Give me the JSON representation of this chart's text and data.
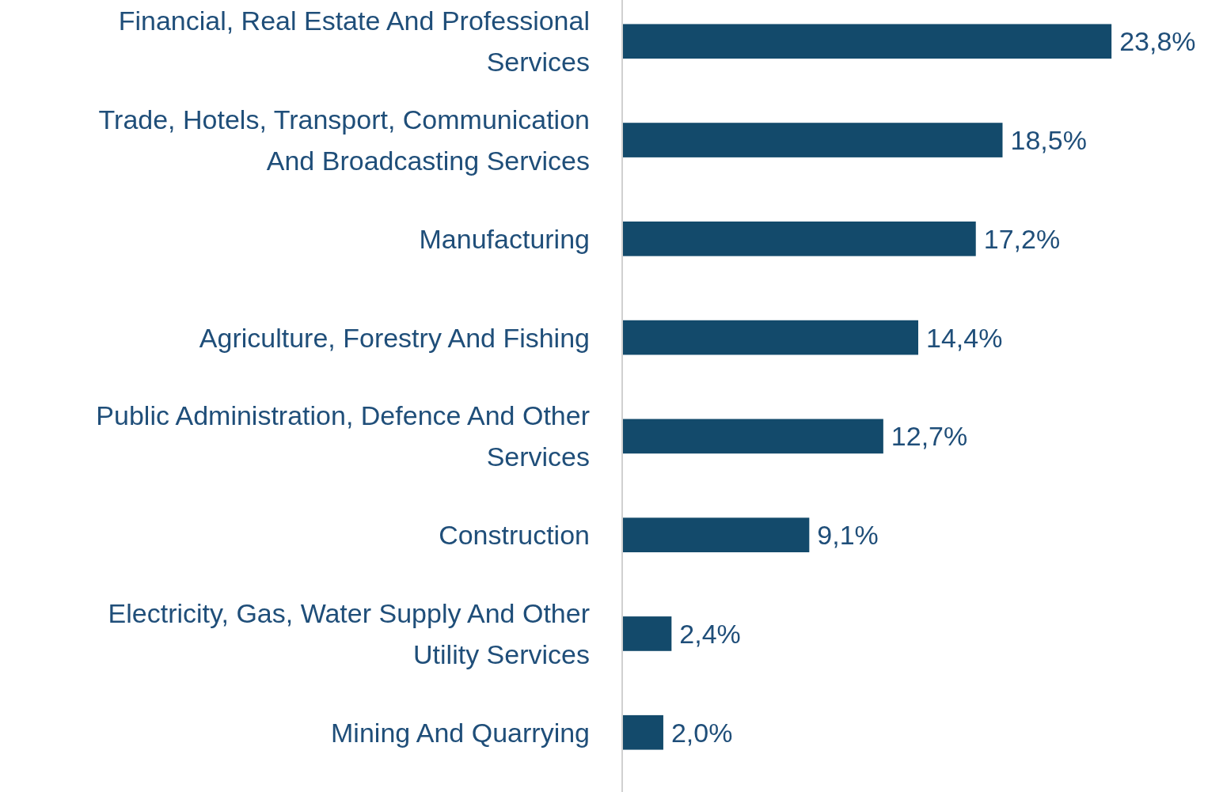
{
  "chart_data": {
    "type": "bar",
    "orientation": "horizontal",
    "categories": [
      "Financial, Real Estate And Professional Services",
      "Trade, Hotels, Transport, Communication And Broadcasting Services",
      "Manufacturing",
      "Agriculture, Forestry And Fishing",
      "Public Administration, Defence And Other Services",
      "Construction",
      "Electricity, Gas, Water Supply And Other Utility Services",
      "Mining And Quarrying"
    ],
    "values": [
      23.8,
      18.5,
      17.2,
      14.4,
      12.7,
      9.1,
      2.4,
      2.0
    ],
    "value_labels": [
      "23,8%",
      "18,5%",
      "17,2%",
      "14,4%",
      "12,7%",
      "9,1%",
      "2,4%",
      "2,0%"
    ],
    "color": "#134a6b"
  }
}
